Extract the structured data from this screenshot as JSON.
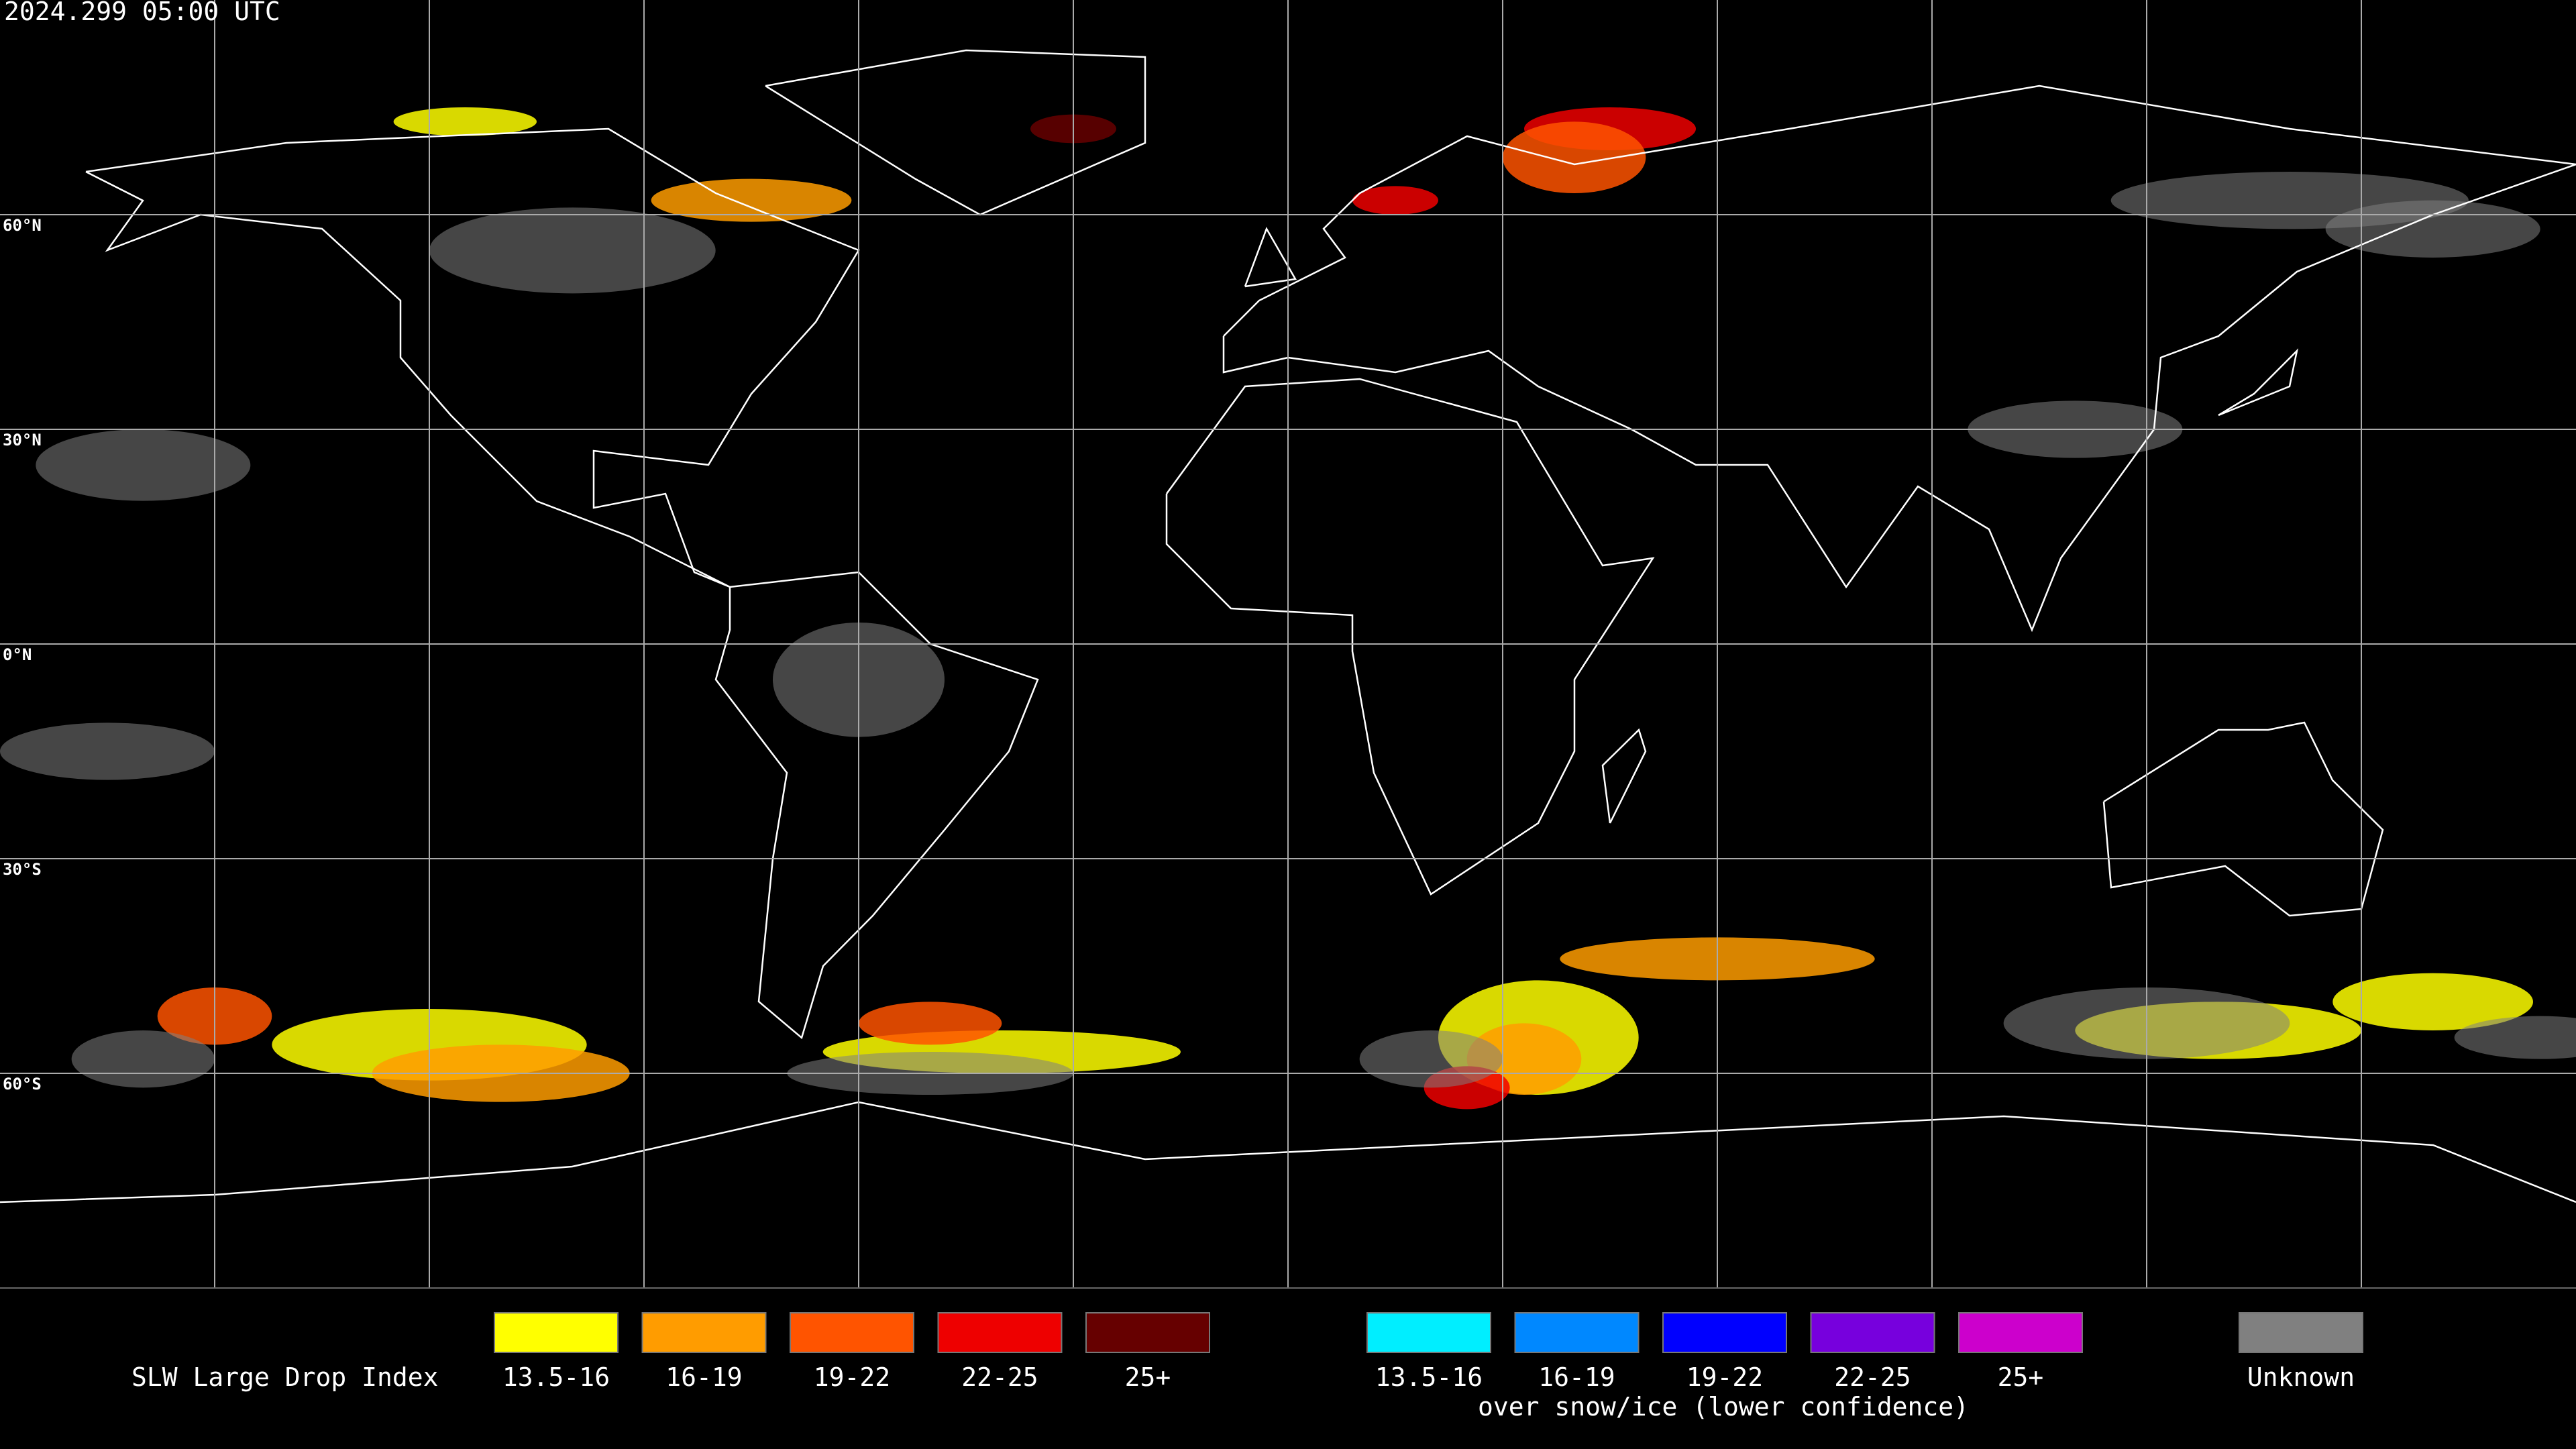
{
  "header": {
    "timestamp": "2024.299 05:00 UTC"
  },
  "map": {
    "latitude_labels": [
      "60°N",
      "30°N",
      "0°N",
      "30°S",
      "60°S"
    ]
  },
  "legend": {
    "title": "SLW Large Drop Index",
    "liquid": [
      {
        "label": "13.5-16",
        "color": "#ffff00"
      },
      {
        "label": "16-19",
        "color": "#ff9c00"
      },
      {
        "label": "19-22",
        "color": "#ff5400"
      },
      {
        "label": "22-25",
        "color": "#ee0000"
      },
      {
        "label": "25+",
        "color": "#660000"
      }
    ],
    "snow_ice": {
      "items": [
        {
          "label": "13.5-16",
          "color": "#00eeff"
        },
        {
          "label": "16-19",
          "color": "#0088ff"
        },
        {
          "label": "19-22",
          "color": "#0000ff"
        },
        {
          "label": "22-25",
          "color": "#7700dd"
        },
        {
          "label": "25+",
          "color": "#cc00cc"
        }
      ],
      "note": "over snow/ice (lower confidence)"
    },
    "unknown": {
      "label": "Unknown",
      "color": "#808080"
    }
  }
}
